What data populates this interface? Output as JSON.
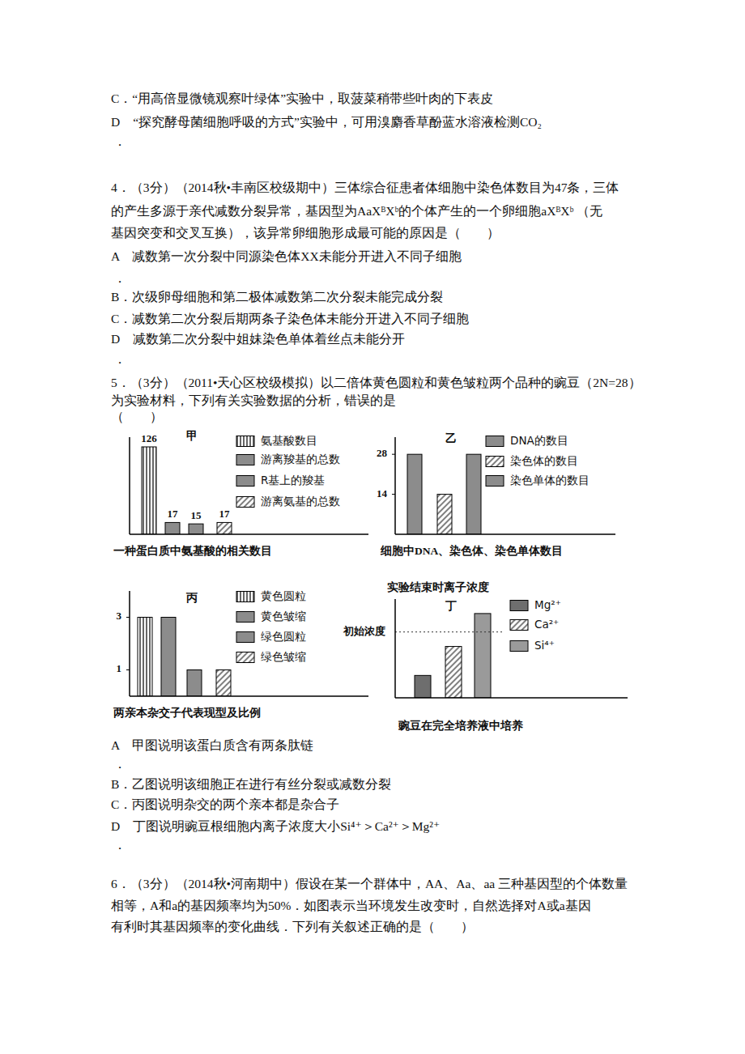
{
  "document": {
    "lines_before": [
      "C．“用高倍显微镜观察叶绿体”实验中，取菠菜稍带些叶肉的下表皮",
      "D　“探究酵母菌细胞呼吸的方式”实验中，可用溴麝香草酚蓝水溶液检测CO₂",
      "．",
      "4．（3分）（2014秋•丰南区校级期中）三体综合征患者体细胞中染色体数目为47条，三体",
      "的产生多源于亲代减数分裂异常，基因型为AaXᴮXᵇ的个体产生的一个卵细胞aXᴮXᵇ （无",
      "基因突变和交叉互换），该异常卵细胞形成最可能的原因是（　　）",
      "A　减数第一次分裂中同源染色体XX未能分开进入不同子细胞",
      "．",
      "B．次级卵母细胞和第二极体减数第二次分裂未能完成分裂",
      "C．减数第二次分裂后期两条子染色体未能分开进入不同子细胞",
      "D　减数第二次分裂中姐妹染色单体着丝点未能分开",
      "．",
      "5．（3分）（2011•天心区校级模拟）以二倍体黄色圆粒和黄色皱粒两个品种的豌豆（2N=28）",
      "为实验材料，下列有关实验数据的分析，错误的是",
      "（　　）"
    ],
    "lines_after": [
      "A　甲图说明该蛋白质含有两条肽链",
      "．",
      "B．乙图说明该细胞正在进行有丝分裂或减数分裂",
      "C．丙图说明杂交的两个亲本都是杂合子",
      "D　丁图说明豌豆根细胞内离子浓度大小Si⁴⁺＞Ca²⁺＞Mg²⁺",
      "．",
      "6．（3分）（2014秋•河南期中）假设在某一个群体中，AA、Aa、aa 三种基因型的个体数量",
      "相等，A和a的基因频率均为50%．如图表示当环境发生改变时，自然选择对A或a基因",
      "有利时其基因频率的变化曲线．下列有关叙述正确的是（　　）"
    ]
  },
  "chart_data": [
    {
      "type": "bar",
      "title": "甲",
      "xlabel": "一种蛋白质中氨基酸的相关数目",
      "categories": [
        "氨基酸数目",
        "游离羧基的总数",
        "R基上的羧基",
        "游离氨基的总数"
      ],
      "values": [
        126,
        17,
        15,
        17
      ],
      "colors": [
        "vertical-stripes",
        "#8c8c8c",
        "#8c8c8c",
        "diagonal-stripes"
      ],
      "ylim": [
        0,
        140
      ],
      "tick_labels": false,
      "data_labels": true,
      "legend": "right"
    },
    {
      "type": "bar",
      "title": "乙",
      "xlabel": "细胞中DNA、染色体、染色单体数目",
      "categories": [
        "DNA的数目",
        "染色体的数目",
        "染色单体的数目"
      ],
      "values": [
        28,
        14,
        28
      ],
      "colors": [
        "#8c8c8c",
        "diagonal-stripes",
        "#8c8c8c"
      ],
      "ylim": [
        0,
        34
      ],
      "yticks": [
        14,
        28
      ],
      "tick_labels": "y",
      "legend": "right"
    },
    {
      "type": "bar",
      "title": "丙",
      "xlabel": "两亲本杂交子代表现型及比例",
      "categories": [
        "黄色圆粒",
        "黄色皱缩",
        "绿色圆粒",
        "绿色皱缩"
      ],
      "values": [
        3,
        3,
        1,
        1
      ],
      "colors": [
        "vertical-stripes",
        "#8c8c8c",
        "#8c8c8c",
        "diagonal-stripes"
      ],
      "ylim": [
        0,
        4
      ],
      "yticks": [
        1,
        3
      ],
      "tick_labels": "y",
      "legend": "right"
    },
    {
      "type": "bar",
      "title": "丁",
      "ylabel": "实验结束时离子浓度",
      "xlabel": "豌豆在完全培养液中培养",
      "categories": [
        "Mg²⁺",
        "Ca²⁺",
        "Si⁴⁺"
      ],
      "values": [
        34,
        78,
        128
      ],
      "colors": [
        "#6e6e6e",
        "diagonal-stripes",
        "#9a9a9a"
      ],
      "reference_line": {
        "value": 100,
        "label": "初始浓度"
      },
      "ylim": [
        0,
        150
      ],
      "tick_labels": false,
      "legend": "right"
    }
  ]
}
